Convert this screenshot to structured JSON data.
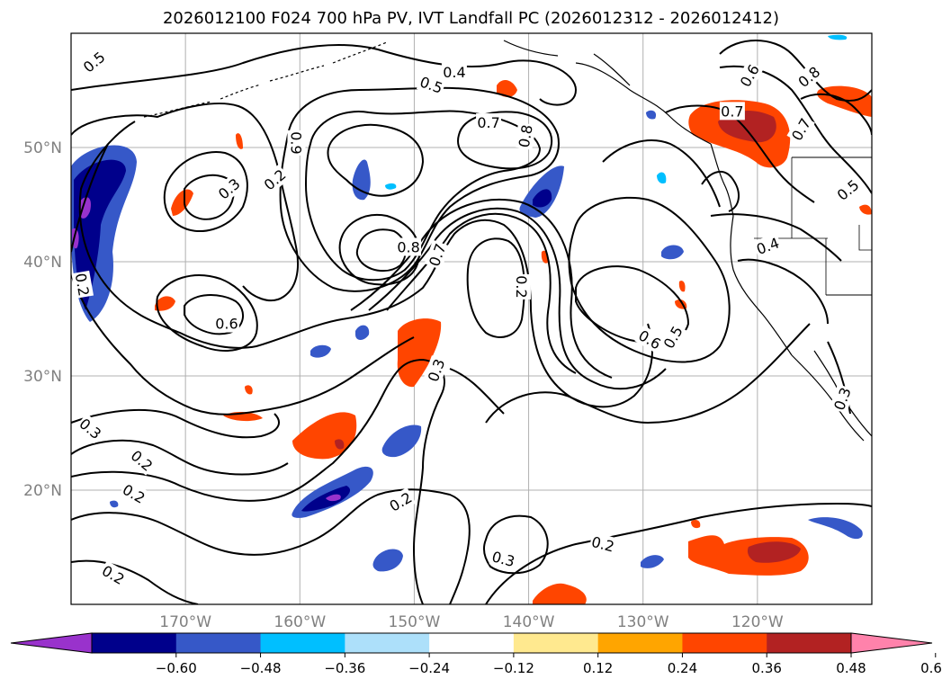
{
  "title": "2026012100 F024 700 hPa PV, IVT Landfall PC (2026012312 - 2026012412)",
  "map": {
    "lon_range": [
      -180,
      -110
    ],
    "lat_range": [
      10,
      60
    ],
    "lat_labels": [
      "50°N",
      "40°N",
      "30°N",
      "20°N"
    ],
    "lat_values": [
      50,
      40,
      30,
      20
    ],
    "lon_labels": [
      "170°W",
      "160°W",
      "150°W",
      "140°W",
      "130°W",
      "120°W"
    ],
    "lon_values": [
      -170,
      -160,
      -150,
      -140,
      -130,
      -120
    ],
    "label_color": "#808080",
    "grid": true
  },
  "colorbar": {
    "ticks": [
      "−0.60",
      "−0.48",
      "−0.36",
      "−0.24",
      "−0.12",
      "0.12",
      "0.24",
      "0.36",
      "0.48",
      "0.60"
    ],
    "colors": [
      "#9932CC",
      "#00008B",
      "#3658C8",
      "#00BFFF",
      "#ADE0FA",
      "#FFFFFF",
      "#FFE98F",
      "#FFA500",
      "#FF4500",
      "#B22222",
      "#FF82AB"
    ],
    "levels": [
      -0.6,
      -0.48,
      -0.36,
      -0.24,
      -0.12,
      0.12,
      0.24,
      0.36,
      0.48,
      0.6
    ],
    "extend": "both"
  },
  "contour_labels": [
    {
      "text": "0.5",
      "lon": -178,
      "lat": 57.5,
      "rot": -40
    },
    {
      "text": "0.4",
      "lon": -146.5,
      "lat": 56.6,
      "rot": 0
    },
    {
      "text": "0.5",
      "lon": -148.5,
      "lat": 55.5,
      "rot": 20
    },
    {
      "text": "0.7",
      "lon": -143.5,
      "lat": 52.2,
      "rot": 0
    },
    {
      "text": "0.8",
      "lon": -140.3,
      "lat": 51,
      "rot": -80
    },
    {
      "text": "0.9",
      "lon": -160.3,
      "lat": 50.4,
      "rot": 90
    },
    {
      "text": "0.3",
      "lon": -166.2,
      "lat": 46.4,
      "rot": -40
    },
    {
      "text": "0.2",
      "lon": -162.2,
      "lat": 47.2,
      "rot": -40
    },
    {
      "text": "0.8",
      "lon": -150.5,
      "lat": 41.3,
      "rot": 0
    },
    {
      "text": "0.7",
      "lon": -148,
      "lat": 40.6,
      "rot": -70
    },
    {
      "text": "0.2",
      "lon": -179,
      "lat": 38,
      "rot": 80
    },
    {
      "text": "0.2",
      "lon": -140.6,
      "lat": 37.8,
      "rot": 90
    },
    {
      "text": "0.6",
      "lon": -166.4,
      "lat": 34.6,
      "rot": 0
    },
    {
      "text": "0.6",
      "lon": -129.4,
      "lat": 33.2,
      "rot": 30
    },
    {
      "text": "0.5",
      "lon": -127.4,
      "lat": 33.4,
      "rot": -60
    },
    {
      "text": "0.3",
      "lon": -148.1,
      "lat": 30.5,
      "rot": -70
    },
    {
      "text": "0.3",
      "lon": -178.3,
      "lat": 25.4,
      "rot": 40
    },
    {
      "text": "0.2",
      "lon": -173.8,
      "lat": 22.6,
      "rot": 40
    },
    {
      "text": "0.2",
      "lon": -174.5,
      "lat": 19.7,
      "rot": 30
    },
    {
      "text": "0.2",
      "lon": -151.2,
      "lat": 19,
      "rot": -30
    },
    {
      "text": "0.2",
      "lon": -133.5,
      "lat": 15.3,
      "rot": 15
    },
    {
      "text": "0.3",
      "lon": -142.2,
      "lat": 14,
      "rot": 15
    },
    {
      "text": "0.2",
      "lon": -176.3,
      "lat": 12.6,
      "rot": 30
    },
    {
      "text": "0.6",
      "lon": -120.7,
      "lat": 56.3,
      "rot": -60
    },
    {
      "text": "0.8",
      "lon": -115.5,
      "lat": 56.2,
      "rot": -40
    },
    {
      "text": "0.7",
      "lon": -122.2,
      "lat": 53.2,
      "rot": 0
    },
    {
      "text": "0.7",
      "lon": -116.2,
      "lat": 51.6,
      "rot": -60
    },
    {
      "text": "0.5",
      "lon": -112.1,
      "lat": 46.3,
      "rot": -40
    },
    {
      "text": "0.4",
      "lon": -119.1,
      "lat": 41.4,
      "rot": -20
    },
    {
      "text": "0.3",
      "lon": -112.6,
      "lat": 28,
      "rot": -70
    }
  ]
}
